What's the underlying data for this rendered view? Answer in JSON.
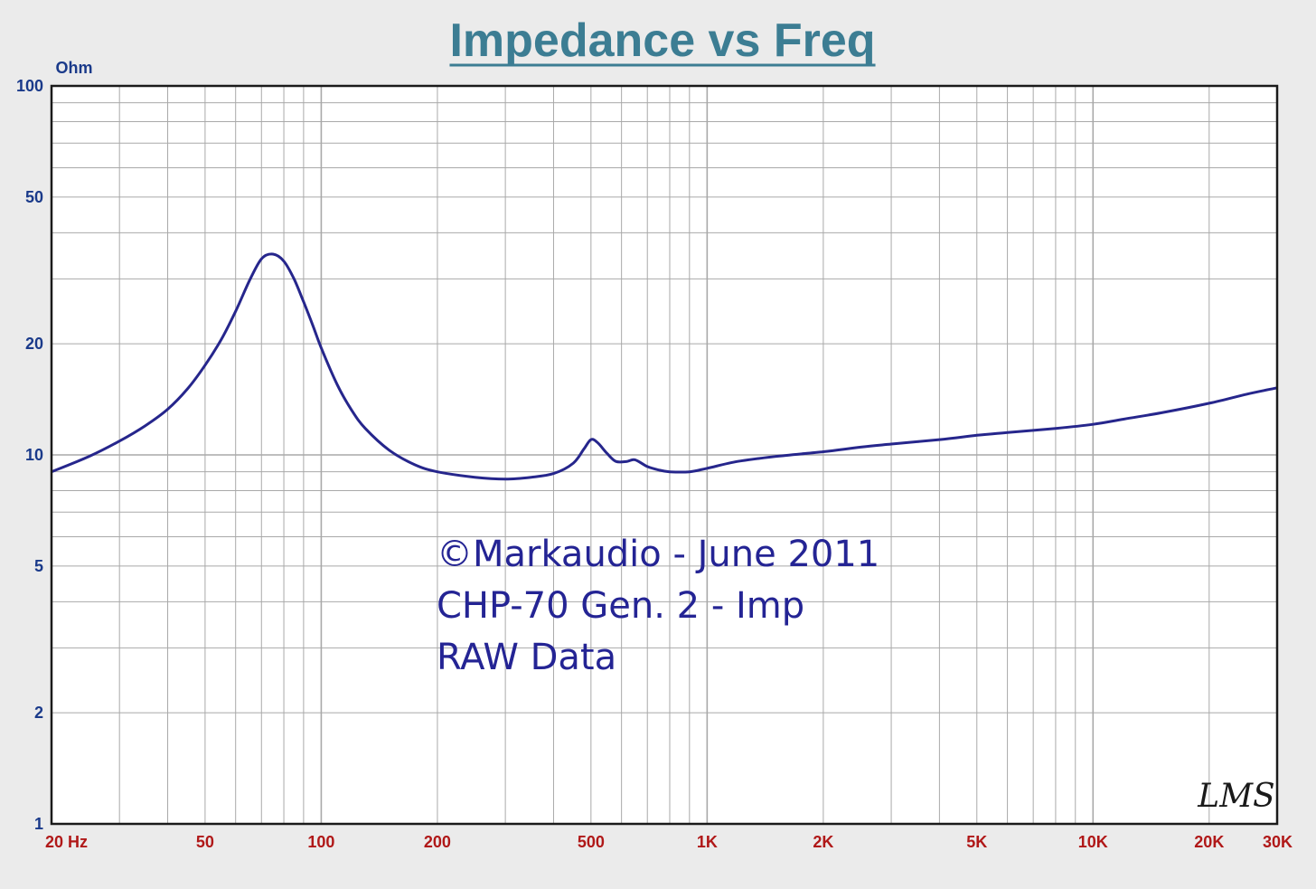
{
  "chart_data": {
    "type": "line",
    "title": "Impedance vs Freq",
    "ylabel": "Ohm",
    "xscale": "log",
    "yscale": "log",
    "xlim": [
      20,
      30000
    ],
    "ylim": [
      1,
      100
    ],
    "grid": true,
    "x_ticks": [
      {
        "value": 20,
        "label": "20  Hz"
      },
      {
        "value": 50,
        "label": "50"
      },
      {
        "value": 100,
        "label": "100"
      },
      {
        "value": 200,
        "label": "200"
      },
      {
        "value": 500,
        "label": "500"
      },
      {
        "value": 1000,
        "label": "1K"
      },
      {
        "value": 2000,
        "label": "2K"
      },
      {
        "value": 5000,
        "label": "5K"
      },
      {
        "value": 10000,
        "label": "10K"
      },
      {
        "value": 20000,
        "label": "20K"
      },
      {
        "value": 30000,
        "label": "30K"
      }
    ],
    "y_ticks": [
      {
        "value": 100,
        "label": "100"
      },
      {
        "value": 50,
        "label": "50"
      },
      {
        "value": 20,
        "label": "20"
      },
      {
        "value": 10,
        "label": "10"
      },
      {
        "value": 5,
        "label": "5"
      },
      {
        "value": 2,
        "label": "2"
      },
      {
        "value": 1,
        "label": "1"
      }
    ],
    "series": [
      {
        "x": [
          20,
          25,
          30,
          35,
          40,
          45,
          50,
          55,
          60,
          65,
          70,
          75,
          80,
          85,
          90,
          95,
          100,
          110,
          120,
          130,
          150,
          175,
          200,
          250,
          300,
          350,
          400,
          450,
          480,
          500,
          520,
          550,
          580,
          620,
          650,
          700,
          750,
          800,
          900,
          1000,
          1200,
          1500,
          2000,
          2500,
          3000,
          4000,
          5000,
          6000,
          8000,
          10000,
          12000,
          15000,
          20000,
          25000,
          30000
        ],
        "y": [
          9.0,
          9.9,
          10.9,
          12.0,
          13.3,
          15.1,
          17.5,
          20.5,
          24.5,
          29.5,
          34.0,
          35.0,
          33.5,
          30.0,
          26.0,
          22.5,
          19.5,
          15.5,
          13.2,
          11.8,
          10.3,
          9.4,
          9.0,
          8.7,
          8.6,
          8.7,
          8.9,
          9.5,
          10.4,
          11.0,
          10.8,
          10.1,
          9.6,
          9.6,
          9.7,
          9.3,
          9.1,
          9.0,
          9.0,
          9.2,
          9.6,
          9.9,
          10.2,
          10.5,
          10.7,
          11.0,
          11.3,
          11.5,
          11.8,
          12.1,
          12.5,
          13.0,
          13.8,
          14.6,
          15.2
        ]
      }
    ],
    "annotations": [
      "©Markaudio - June 2011",
      "CHP-70  Gen. 2 - Imp",
      "RAW Data"
    ],
    "logo": "LMS",
    "colors": {
      "title": "#3c7d93",
      "line": "#26268c",
      "tick_x": "#b01818",
      "tick_y": "#1a3a8a",
      "annotation": "#242494",
      "grid": "#a9a9a9",
      "plot_bg": "#ffffff",
      "frame": "#1a1a1a"
    }
  }
}
